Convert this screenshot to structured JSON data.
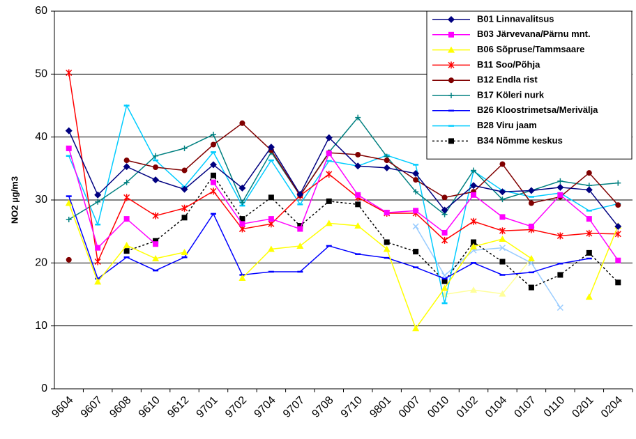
{
  "chart_data": {
    "type": "line",
    "y_label": "NO2 µg/m3",
    "categories": [
      "9604",
      "9607",
      "9608",
      "9610",
      "9612",
      "9701",
      "9702",
      "9704",
      "9707",
      "9708",
      "9710",
      "9801",
      "0007",
      "0010",
      "0102",
      "0104",
      "0107",
      "0110",
      "0201",
      "0204"
    ],
    "ylim": [
      0,
      60
    ],
    "yticks": [
      0,
      10,
      20,
      30,
      40,
      50,
      60
    ],
    "grid": true,
    "legend": "top-right",
    "series": [
      {
        "name": "B01 Linnavalitsus",
        "color": "#000080",
        "marker": "diamond",
        "dash": "solid",
        "values": [
          41,
          30.8,
          35.3,
          33.2,
          31.7,
          35.6,
          31.9,
          38.4,
          30.9,
          39.9,
          35.4,
          35.1,
          34.2,
          28.4,
          32.3,
          31.3,
          31.5,
          32.0,
          31.6,
          25.8
        ]
      },
      {
        "name": "B03 Järvevana/Pärnu mnt.",
        "color": "#ff00ff",
        "marker": "square",
        "dash": "solid",
        "values": [
          38.2,
          22.4,
          27.0,
          23.0,
          null,
          32.8,
          26.2,
          27.0,
          25.4,
          37.4,
          30.8,
          28.0,
          28.3,
          24.8,
          30.8,
          27.3,
          25.8,
          30.8,
          27.0,
          20.4
        ]
      },
      {
        "name": "B06 Sõpruse/Tammsaare",
        "color": "#ffff00",
        "marker": "triangle",
        "dash": "solid",
        "values": [
          29.5,
          17.0,
          22.8,
          20.7,
          21.7,
          null,
          17.6,
          22.2,
          22.7,
          26.3,
          25.9,
          22.2,
          9.6,
          16.0,
          22.6,
          23.8,
          20.7,
          null,
          14.6,
          25.9
        ]
      },
      {
        "name": "B11 Soo/Põhja",
        "color": "#ff0000",
        "marker": "star",
        "dash": "solid",
        "values": [
          50.2,
          20.2,
          30.4,
          27.5,
          28.7,
          31.4,
          25.4,
          26.2,
          30.7,
          34.1,
          30.4,
          27.9,
          27.9,
          23.6,
          26.6,
          25.1,
          25.3,
          24.3,
          24.7,
          24.6
        ]
      },
      {
        "name": "B12 Endla rist",
        "color": "#800000",
        "marker": "circle",
        "dash": "solid",
        "values": [
          20.5,
          null,
          36.3,
          35.2,
          34.7,
          38.8,
          42.2,
          37.9,
          30.7,
          37.5,
          37.2,
          36.3,
          33.2,
          30.4,
          31.3,
          35.7,
          29.5,
          30.5,
          34.3,
          29.2
        ]
      },
      {
        "name": "B17 Köleri nurk",
        "color": "#008080",
        "marker": "plus",
        "dash": "solid",
        "values": [
          26.9,
          29.7,
          32.8,
          37.0,
          38.2,
          40.4,
          29.6,
          37.6,
          30.7,
          37.6,
          43.1,
          36.9,
          31.3,
          27.7,
          34.7,
          30.1,
          31.5,
          33.0,
          32.3,
          32.7
        ]
      },
      {
        "name": "B26 Kloostrimetsa/Merivälja",
        "color": "#0000ff",
        "marker": "dash",
        "dash": "solid",
        "values": [
          30.6,
          17.5,
          20.9,
          18.8,
          20.9,
          27.8,
          18.1,
          18.6,
          18.6,
          22.7,
          21.4,
          20.8,
          19.3,
          17.5,
          20.0,
          18.1,
          18.5,
          19.9,
          20.7,
          null
        ]
      },
      {
        "name": "B28 Viru jaam",
        "color": "#00ccff",
        "marker": "dash",
        "dash": "solid",
        "values": [
          37.0,
          26.1,
          45.0,
          36.3,
          32.1,
          37.6,
          29.1,
          36.3,
          29.3,
          36.2,
          35.4,
          37.1,
          35.6,
          13.6,
          34.6,
          31.5,
          30.5,
          31.1,
          28.3,
          29.4
        ]
      },
      {
        "name": "B34 Nõmme keskus",
        "color": "#000000",
        "marker": "square",
        "dash": "dotted",
        "values": [
          null,
          null,
          21.9,
          23.5,
          27.2,
          33.9,
          27.0,
          30.4,
          25.9,
          29.8,
          29.3,
          23.3,
          21.8,
          17.1,
          23.3,
          20.2,
          16.1,
          18.1,
          21.6,
          16.9
        ]
      },
      {
        "color": "#99ccff",
        "marker": "x",
        "dash": "solid",
        "values": [
          null,
          null,
          null,
          null,
          null,
          null,
          null,
          null,
          null,
          null,
          null,
          null,
          25.8,
          18.0,
          22.0,
          22.4,
          20.0,
          12.9,
          null,
          null
        ]
      },
      {
        "color": "#ffff99",
        "marker": "triangle",
        "dash": "solid",
        "values": [
          null,
          null,
          null,
          null,
          null,
          null,
          null,
          null,
          null,
          null,
          null,
          null,
          null,
          15.0,
          15.7,
          15.1,
          20.7,
          null,
          null,
          null
        ]
      }
    ]
  }
}
